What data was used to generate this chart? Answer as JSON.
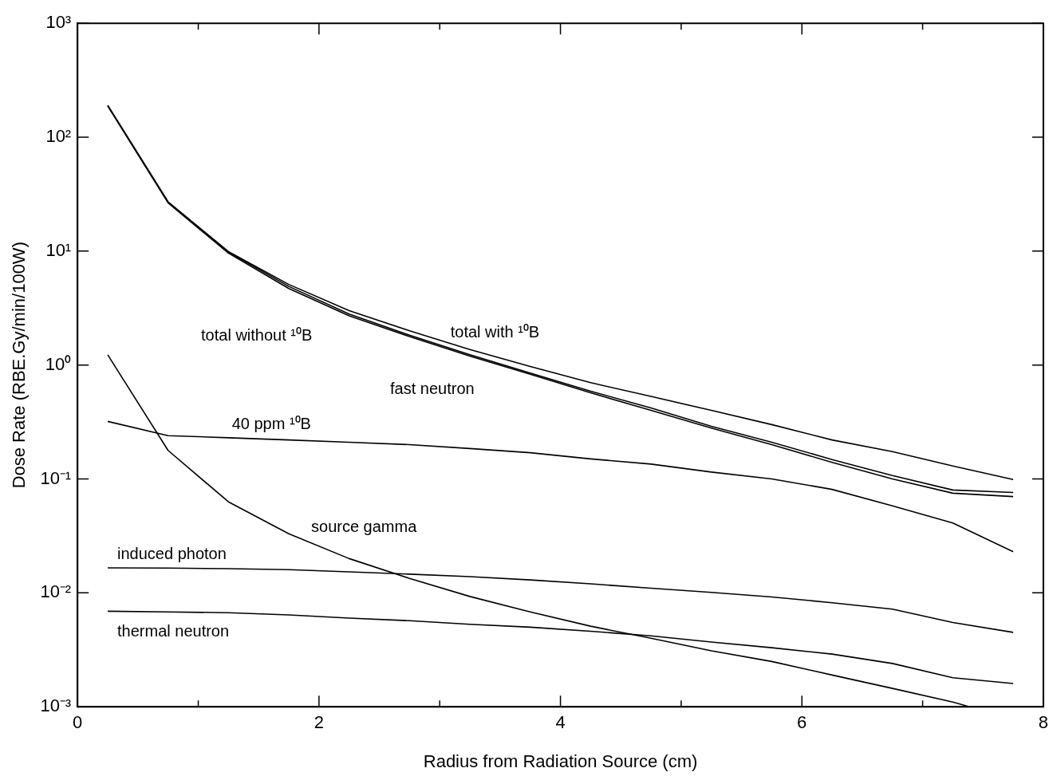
{
  "chart_data": {
    "type": "line",
    "xlabel": "Radius from Radiation Source (cm)",
    "ylabel": "Dose Rate (RBE.Gy/min/100W)",
    "x": [
      0.25,
      0.75,
      1.25,
      1.75,
      2.25,
      2.75,
      3.25,
      3.75,
      4.25,
      4.75,
      5.25,
      5.75,
      6.25,
      6.75,
      7.25,
      7.75
    ],
    "series": [
      {
        "name": "total without ¹⁰B",
        "color": "#000000",
        "values": [
          190,
          27,
          9.8,
          4.9,
          2.8,
          1.83,
          1.23,
          0.85,
          0.59,
          0.42,
          0.29,
          0.21,
          0.148,
          0.107,
          0.08,
          0.076
        ]
      },
      {
        "name": "total with ¹⁰B",
        "color": "#000000",
        "values": [
          190,
          27,
          9.9,
          5.1,
          3.0,
          2.0,
          1.37,
          0.97,
          0.7,
          0.53,
          0.4,
          0.3,
          0.22,
          0.174,
          0.13,
          0.099
        ]
      },
      {
        "name": "fast neutron",
        "color": "#000000",
        "values": [
          188,
          26.5,
          9.6,
          4.7,
          2.7,
          1.78,
          1.2,
          0.83,
          0.57,
          0.4,
          0.28,
          0.2,
          0.14,
          0.1,
          0.075,
          0.07
        ]
      },
      {
        "name": "40 ppm ¹⁰B",
        "color": "#000000",
        "values": [
          0.32,
          0.24,
          0.23,
          0.22,
          0.21,
          0.2,
          0.185,
          0.17,
          0.15,
          0.135,
          0.115,
          0.1,
          0.081,
          0.058,
          0.041,
          0.023
        ]
      },
      {
        "name": "source gamma",
        "color": "#000000",
        "x": [
          0.25,
          0.75,
          1.25,
          1.75,
          2.25,
          2.75,
          3.25,
          3.75,
          4.25,
          4.75,
          5.25,
          5.75,
          6.25,
          6.75,
          7.25,
          7.39
        ],
        "values": [
          1.23,
          0.178,
          0.063,
          0.033,
          0.02,
          0.0134,
          0.0093,
          0.0068,
          0.0051,
          0.004,
          0.0031,
          0.0025,
          0.0019,
          0.00145,
          0.0011,
          0.001
        ]
      },
      {
        "name": "induced photon",
        "color": "#000000",
        "values": [
          0.0166,
          0.0165,
          0.0163,
          0.016,
          0.0153,
          0.0146,
          0.0139,
          0.013,
          0.012,
          0.011,
          0.0101,
          0.0092,
          0.0082,
          0.0072,
          0.0055,
          0.0045
        ]
      },
      {
        "name": "thermal neutron",
        "color": "#000000",
        "values": [
          0.0069,
          0.0068,
          0.0067,
          0.0064,
          0.006,
          0.0057,
          0.0053,
          0.005,
          0.0046,
          0.0042,
          0.0037,
          0.0033,
          0.0029,
          0.0024,
          0.0018,
          0.0016
        ]
      }
    ],
    "xlim": [
      0,
      8
    ],
    "xticks": [
      0,
      {
        "value": 1,
        "label": null
      },
      2,
      {
        "value": 3,
        "label": null
      },
      4,
      {
        "value": 5,
        "label": null
      },
      6,
      {
        "value": 7,
        "label": null
      },
      8
    ],
    "ylim": [
      0.001,
      1000
    ],
    "yticks": [
      {
        "value": 0.001,
        "label": "10⁻³"
      },
      {
        "value": 0.01,
        "label": "10⁻²"
      },
      {
        "value": 0.1,
        "label": "10⁻¹"
      },
      {
        "value": 1,
        "label": "10⁰"
      },
      {
        "value": 10,
        "label": "10¹"
      },
      {
        "value": 100,
        "label": "10²"
      },
      {
        "value": 1000,
        "label": "10³"
      }
    ],
    "log": "y",
    "grid": false,
    "legend": false,
    "marker": "none",
    "line_style": "solid"
  }
}
